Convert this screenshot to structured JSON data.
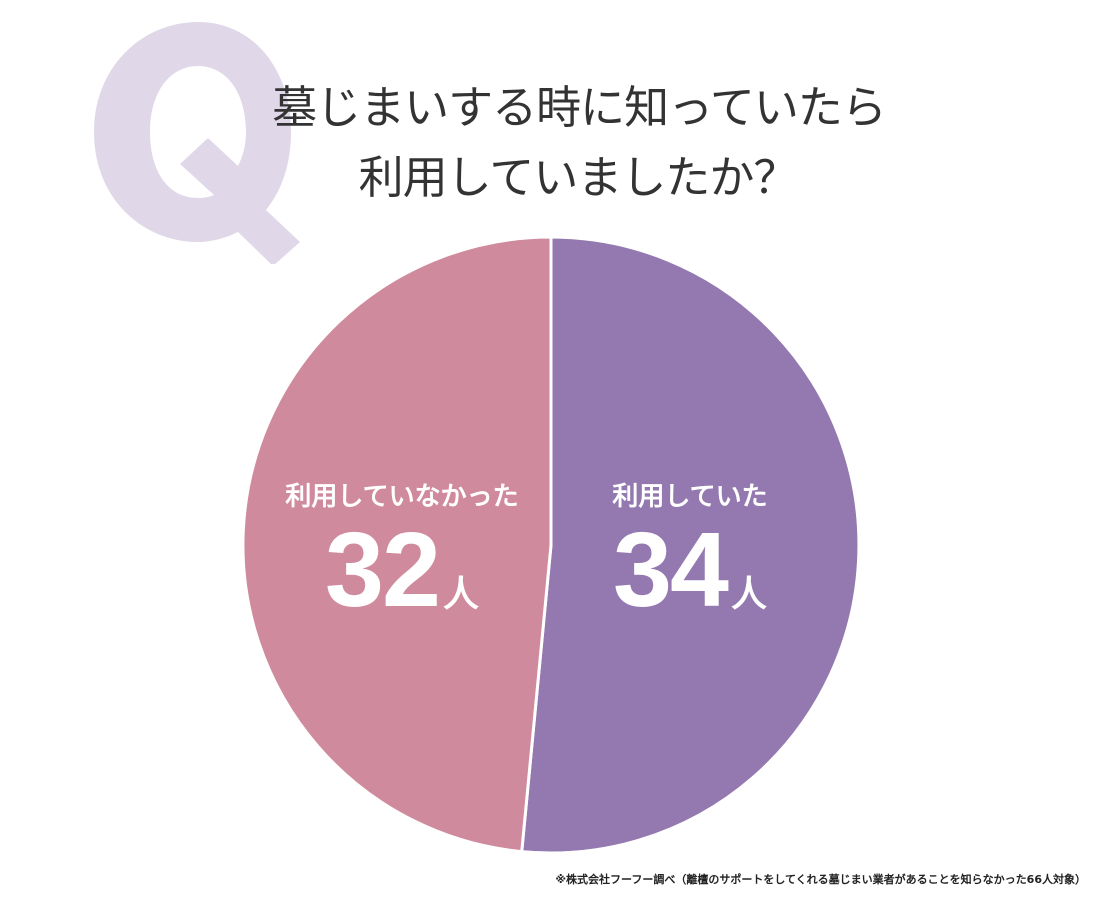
{
  "watermark": {
    "letter": "Q",
    "color": "#E0D8E8"
  },
  "title": {
    "line1": "墓じまいする時に知っていたら",
    "line2": "利用していましたか？",
    "color": "#333333"
  },
  "labels": {
    "used": {
      "category": "利用していた",
      "value": "34",
      "unit": "人"
    },
    "not_used": {
      "category": "利用していなかった",
      "value": "32",
      "unit": "人"
    }
  },
  "footnote": "※株式会社フーフー調べ（離檀のサポートをしてくれる墓じまい業者があることを知らなかった66人対象）",
  "colors": {
    "used": "#9479B0",
    "not_used": "#D08A9E",
    "separator": "#FFFFFF"
  },
  "chart_data": {
    "type": "pie",
    "title": "墓じまいする時に知っていたら利用していましたか？",
    "categories": [
      "利用していた",
      "利用していなかった"
    ],
    "values": [
      34,
      32
    ],
    "unit": "人",
    "total": 66,
    "colors": [
      "#9479B0",
      "#D08A9E"
    ],
    "start_angle_deg": 0,
    "direction": "clockwise",
    "legend": "none (labels inside slices)",
    "source_note": "※株式会社フーフー調べ（離檀のサポートをしてくれる墓じまい業者があることを知らなかった66人対象）"
  }
}
